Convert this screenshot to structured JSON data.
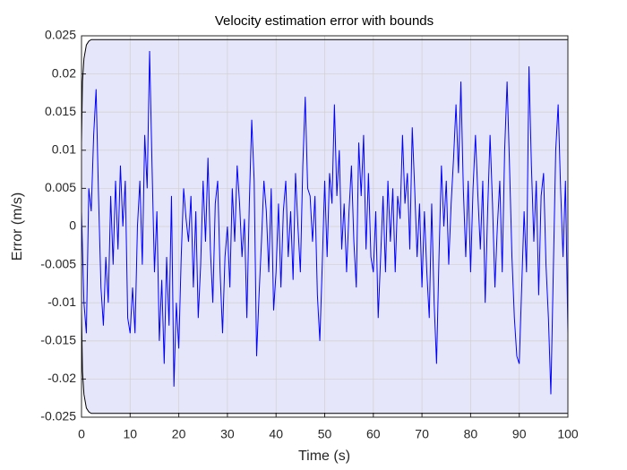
{
  "chart_data": {
    "type": "line",
    "title": "Velocity estimation error with bounds",
    "xlabel": "Time (s)",
    "ylabel": "Error (m/s)",
    "xlim": [
      0,
      100
    ],
    "xticks": [
      0,
      10,
      20,
      30,
      40,
      50,
      60,
      70,
      80,
      90,
      100
    ],
    "ylim": [
      -0.025,
      0.025
    ],
    "yticks": [
      -0.025,
      -0.02,
      -0.015,
      -0.01,
      -0.005,
      0,
      0.005,
      0.01,
      0.015,
      0.02,
      0.025
    ],
    "grid": true,
    "background": "#ffffff",
    "bound_fill": "#e6e6fa",
    "bound_color": "#000000",
    "x": [
      0,
      0.5,
      1,
      1.5,
      2,
      2.5,
      3,
      3.5,
      4,
      4.5,
      5,
      5.5,
      6,
      6.5,
      7,
      7.5,
      8,
      8.5,
      9,
      9.5,
      10,
      10.5,
      11,
      11.5,
      12,
      12.5,
      13,
      13.5,
      14,
      14.5,
      15,
      15.5,
      16,
      16.5,
      17,
      17.5,
      18,
      18.5,
      19,
      19.5,
      20,
      20.5,
      21,
      21.5,
      22,
      22.5,
      23,
      23.5,
      24,
      24.5,
      25,
      25.5,
      26,
      26.5,
      27,
      27.5,
      28,
      28.5,
      29,
      29.5,
      30,
      30.5,
      31,
      31.5,
      32,
      32.5,
      33,
      33.5,
      34,
      34.5,
      35,
      35.5,
      36,
      36.5,
      37,
      37.5,
      38,
      38.5,
      39,
      39.5,
      40,
      40.5,
      41,
      41.5,
      42,
      42.5,
      43,
      43.5,
      44,
      44.5,
      45,
      45.5,
      46,
      46.5,
      47,
      47.5,
      48,
      48.5,
      49,
      49.5,
      50,
      50.5,
      51,
      51.5,
      52,
      52.5,
      53,
      53.5,
      54,
      54.5,
      55,
      55.5,
      56,
      56.5,
      57,
      57.5,
      58,
      58.5,
      59,
      59.5,
      60,
      60.5,
      61,
      61.5,
      62,
      62.5,
      63,
      63.5,
      64,
      64.5,
      65,
      65.5,
      66,
      66.5,
      67,
      67.5,
      68,
      68.5,
      69,
      69.5,
      70,
      70.5,
      71,
      71.5,
      72,
      72.5,
      73,
      73.5,
      74,
      74.5,
      75,
      75.5,
      76,
      76.5,
      77,
      77.5,
      78,
      78.5,
      79,
      79.5,
      80,
      80.5,
      81,
      81.5,
      82,
      82.5,
      83,
      83.5,
      84,
      84.5,
      85,
      85.5,
      86,
      86.5,
      87,
      87.5,
      88,
      88.5,
      89,
      89.5,
      90,
      90.5,
      91,
      91.5,
      92,
      92.5,
      93,
      93.5,
      94,
      94.5,
      95,
      95.5,
      96,
      96.5,
      97,
      97.5,
      98,
      98.5,
      99,
      99.5,
      100
    ],
    "series": [
      {
        "color": "#0000ff",
        "values": [
          0.002,
          -0.01,
          -0.014,
          0.005,
          0.002,
          0.012,
          0.018,
          0.004,
          -0.008,
          -0.013,
          -0.004,
          -0.01,
          0.004,
          -0.005,
          0.006,
          -0.003,
          0.008,
          0.0,
          0.006,
          -0.012,
          -0.014,
          -0.008,
          -0.014,
          0.0,
          0.006,
          -0.005,
          0.012,
          0.005,
          0.023,
          0.008,
          -0.006,
          0.002,
          -0.015,
          -0.007,
          -0.018,
          -0.004,
          -0.013,
          0.004,
          -0.021,
          -0.01,
          -0.016,
          -0.004,
          0.005,
          0.001,
          -0.002,
          0.004,
          -0.008,
          0.002,
          -0.012,
          -0.005,
          0.006,
          -0.002,
          0.009,
          -0.003,
          -0.01,
          0.003,
          0.006,
          -0.006,
          -0.014,
          -0.004,
          0.0,
          -0.008,
          0.005,
          -0.002,
          0.008,
          0.003,
          -0.004,
          0.001,
          -0.012,
          0.003,
          0.014,
          0.006,
          -0.017,
          -0.009,
          -0.002,
          0.006,
          0.002,
          -0.006,
          0.005,
          -0.011,
          -0.006,
          0.003,
          -0.008,
          0.002,
          0.006,
          -0.004,
          0.002,
          -0.007,
          0.007,
          0.0,
          -0.006,
          0.008,
          0.017,
          0.005,
          0.004,
          -0.002,
          0.004,
          -0.009,
          -0.015,
          -0.005,
          0.006,
          -0.004,
          0.007,
          0.003,
          0.016,
          0.004,
          0.01,
          -0.003,
          0.003,
          -0.006,
          0.002,
          0.008,
          -0.002,
          -0.008,
          0.011,
          0.004,
          0.012,
          -0.003,
          0.007,
          -0.004,
          -0.006,
          0.002,
          -0.012,
          -0.004,
          0.004,
          -0.006,
          0.006,
          -0.002,
          0.005,
          -0.006,
          0.004,
          0.001,
          0.012,
          0.003,
          0.007,
          -0.003,
          0.013,
          0.005,
          -0.004,
          0.003,
          -0.008,
          0.002,
          -0.006,
          -0.012,
          0.003,
          -0.01,
          -0.018,
          -0.004,
          0.008,
          0.0,
          0.006,
          -0.005,
          0.003,
          0.009,
          0.016,
          0.007,
          0.019,
          0.005,
          -0.004,
          0.006,
          -0.006,
          0.005,
          0.012,
          0.004,
          -0.003,
          0.006,
          -0.01,
          0.002,
          0.012,
          0.003,
          -0.008,
          0.0,
          0.006,
          -0.006,
          0.01,
          0.019,
          0.008,
          -0.004,
          -0.012,
          -0.017,
          -0.018,
          -0.008,
          0.002,
          -0.006,
          0.021,
          0.008,
          -0.002,
          0.006,
          -0.009,
          0.004,
          0.007,
          -0.005,
          -0.012,
          -0.022,
          -0.006,
          0.01,
          0.016,
          0.005,
          -0.004,
          0.006,
          -0.014
        ]
      }
    ],
    "bounds": {
      "x": [
        0,
        0.2,
        0.5,
        1,
        1.5,
        2,
        100
      ],
      "upper": [
        0.011,
        0.019,
        0.022,
        0.0238,
        0.0243,
        0.0245,
        0.0245
      ],
      "lower": [
        -0.011,
        -0.019,
        -0.022,
        -0.0238,
        -0.0243,
        -0.0245,
        -0.0245
      ]
    }
  }
}
